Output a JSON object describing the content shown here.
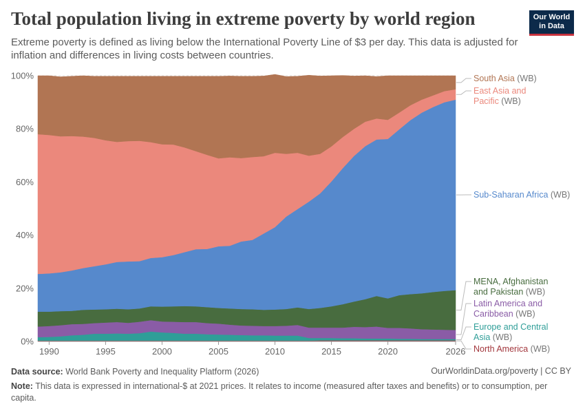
{
  "header": {
    "title": "Total population living in extreme poverty by world region",
    "subtitle": "Extreme poverty is defined as living below the International Poverty Line of $3 per day. This data is adjusted for inflation and differences in living costs between countries.",
    "logo_line1": "Our World",
    "logo_line2": "in Data"
  },
  "footer": {
    "source_label": "Data source:",
    "source_text": "World Bank Poverty and Inequality Platform (2026)",
    "site": "OurWorldinData.org/poverty | CC BY",
    "note_label": "Note:",
    "note_text": "This data is expressed in international-$ at 2021 prices. It relates to income (measured after taxes and benefits) or to consumption, per capita."
  },
  "chart_data": {
    "type": "area",
    "stacked": true,
    "normalized": true,
    "x_tick_labels": [
      "1990",
      "1995",
      "2000",
      "2005",
      "2010",
      "2015",
      "2020",
      "2026"
    ],
    "y_tick_labels": [
      "0%",
      "20%",
      "40%",
      "60%",
      "80%",
      "100%"
    ],
    "ylim": [
      0,
      100
    ],
    "xlim": [
      1989,
      2026
    ],
    "x": [
      1989,
      1990,
      1991,
      1992,
      1993,
      1994,
      1995,
      1996,
      1997,
      1998,
      1999,
      2000,
      2001,
      2002,
      2003,
      2004,
      2005,
      2006,
      2007,
      2008,
      2009,
      2010,
      2011,
      2012,
      2013,
      2014,
      2015,
      2016,
      2017,
      2018,
      2019,
      2020,
      2021,
      2022,
      2023,
      2024,
      2025,
      2026
    ],
    "series": [
      {
        "name": "North America",
        "suffix": "(WB)",
        "color": "#a2363c",
        "values": [
          0.3,
          0.3,
          0.3,
          0.3,
          0.3,
          0.3,
          0.3,
          0.3,
          0.3,
          0.3,
          0.3,
          0.3,
          0.3,
          0.3,
          0.3,
          0.3,
          0.3,
          0.3,
          0.3,
          0.3,
          0.3,
          0.3,
          0.3,
          0.3,
          0.3,
          0.4,
          0.4,
          0.4,
          0.4,
          0.4,
          0.4,
          0.4,
          0.4,
          0.4,
          0.4,
          0.4,
          0.4,
          0.4
        ]
      },
      {
        "name": "Europe and Central Asia",
        "suffix": "(WB)",
        "color": "#2f9e98",
        "values": [
          1.3,
          1.4,
          1.6,
          2.0,
          2.2,
          2.6,
          2.6,
          2.7,
          2.6,
          2.8,
          3.4,
          3.1,
          2.9,
          2.6,
          2.6,
          2.4,
          2.3,
          2.2,
          2.1,
          2.0,
          2.0,
          1.9,
          1.9,
          1.9,
          1.0,
          0.9,
          0.9,
          0.8,
          0.8,
          0.7,
          0.7,
          0.7,
          0.6,
          0.6,
          0.5,
          0.5,
          0.5,
          0.5
        ]
      },
      {
        "name": "Latin America and Caribbean",
        "suffix": "(WB)",
        "color": "#8a5ca6",
        "values": [
          4.0,
          4.1,
          4.2,
          4.2,
          4.1,
          4.0,
          4.2,
          4.3,
          4.1,
          4.3,
          4.3,
          4.1,
          4.2,
          4.4,
          4.4,
          4.2,
          4.1,
          3.8,
          3.6,
          3.6,
          3.5,
          3.6,
          3.7,
          4.0,
          3.9,
          3.9,
          3.9,
          4.0,
          4.3,
          4.3,
          4.5,
          4.0,
          4.1,
          3.9,
          3.7,
          3.6,
          3.5,
          3.4
        ]
      },
      {
        "name": "MENA, Afghanistan and Pakistan",
        "suffix": "(WB)",
        "color": "#486c3f",
        "values": [
          5.6,
          5.4,
          5.3,
          5.0,
          5.3,
          5.1,
          5.0,
          5.0,
          5.1,
          5.0,
          5.2,
          5.6,
          5.8,
          6.0,
          5.9,
          6.0,
          5.9,
          6.1,
          6.2,
          6.2,
          6.1,
          6.2,
          6.3,
          6.6,
          7.0,
          7.4,
          8.0,
          8.8,
          9.5,
          10.5,
          11.5,
          11.1,
          12.3,
          12.9,
          13.5,
          14.1,
          14.6,
          15.0
        ]
      },
      {
        "name": "Sub-Saharan Africa",
        "suffix": "(WB)",
        "color": "#5689cc",
        "values": [
          14.2,
          14.4,
          14.6,
          15.2,
          15.7,
          16.3,
          16.9,
          17.6,
          18.0,
          17.8,
          18.2,
          18.6,
          19.3,
          20.3,
          21.5,
          21.9,
          23.2,
          23.6,
          25.4,
          26.1,
          28.7,
          31.0,
          34.8,
          37.0,
          40.4,
          43.1,
          47.0,
          51.2,
          54.8,
          57.6,
          58.9,
          60.0,
          62.4,
          65.5,
          68.0,
          69.6,
          71.0,
          71.7
        ]
      },
      {
        "name": "East Asia and Pacific",
        "suffix": "(WB)",
        "color": "#eb887c",
        "values": [
          52.6,
          52.1,
          51.2,
          50.6,
          49.5,
          48.3,
          46.7,
          45.2,
          45.3,
          45.3,
          43.6,
          42.5,
          41.6,
          39.4,
          36.9,
          35.4,
          33.1,
          33.3,
          31.4,
          31.2,
          29.1,
          28.0,
          23.6,
          21.2,
          17.3,
          14.9,
          13.2,
          11.7,
          10.2,
          9.2,
          7.9,
          7.2,
          6.3,
          5.6,
          4.9,
          4.4,
          4.2,
          3.9
        ]
      },
      {
        "name": "South Asia",
        "suffix": "(WB)",
        "color": "#b17553",
        "values": [
          22.0,
          22.3,
          22.4,
          22.5,
          22.9,
          23.2,
          24.1,
          24.7,
          24.4,
          24.3,
          24.8,
          25.6,
          25.7,
          26.8,
          28.2,
          29.6,
          30.9,
          30.6,
          30.8,
          30.4,
          30.2,
          29.5,
          29.1,
          28.8,
          30.3,
          29.3,
          26.6,
          23.2,
          19.9,
          17.3,
          15.8,
          16.6,
          13.9,
          11.1,
          9.0,
          7.4,
          5.8,
          5.1
        ]
      }
    ]
  }
}
